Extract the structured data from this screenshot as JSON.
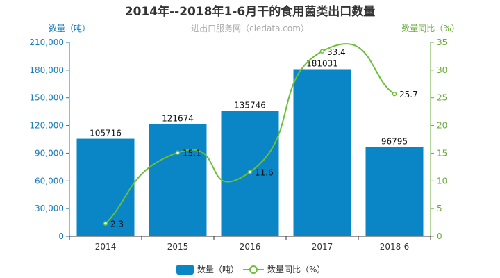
{
  "colors": {
    "bar": "#0a86c6",
    "line": "#6bbf3a",
    "left_axis": "#1a7bb8",
    "right_axis": "#6aaa3a"
  },
  "chart_data": {
    "type": "bar",
    "title": "2014年--2018年1-6月干的食用菌类出口数量",
    "subtitle": "进出口服务网（ciedata.com）",
    "categories": [
      "2014",
      "2015",
      "2016",
      "2017",
      "2018-6"
    ],
    "ylabel": "数量（吨）",
    "y2label": "数量同比（%）",
    "ylim": [
      0,
      210000
    ],
    "y_ticks": [
      0,
      30000,
      60000,
      90000,
      120000,
      150000,
      180000,
      210000
    ],
    "y_tick_labels": [
      "0",
      "30,000",
      "60,000",
      "90,000",
      "120,000",
      "150,000",
      "180,000",
      "210,000"
    ],
    "y2lim": [
      0,
      35
    ],
    "y2_ticks": [
      0,
      5,
      10,
      15,
      20,
      25,
      30,
      35
    ],
    "y2_tick_labels": [
      "0",
      "5",
      "10",
      "15",
      "20",
      "25",
      "30",
      "35"
    ],
    "series": [
      {
        "name": "数量（吨）",
        "type": "bar",
        "values": [
          105716,
          121674,
          135746,
          181031,
          96795
        ],
        "labels": [
          "105716",
          "121674",
          "135746",
          "181031",
          "96795"
        ]
      },
      {
        "name": "数量同比（%）",
        "type": "line",
        "axis": "right",
        "values": [
          2.3,
          15.1,
          11.6,
          33.4,
          25.7
        ],
        "labels": [
          "2.3",
          "15.1",
          "11.6",
          "33.4",
          "25.7"
        ]
      }
    ],
    "legend": "bottom-center",
    "grid": false
  }
}
